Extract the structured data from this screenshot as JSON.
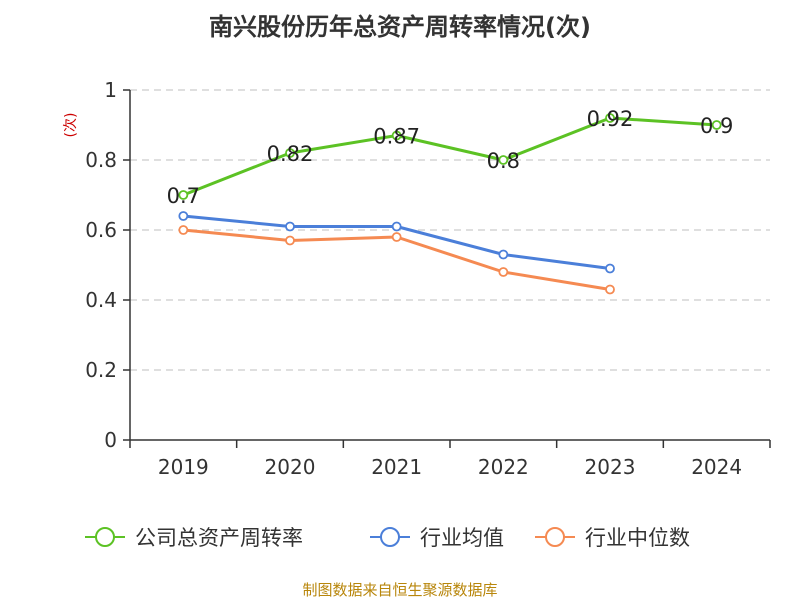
{
  "colors": {
    "series": [
      "#5cc224",
      "#4b7fd9",
      "#f58a52"
    ],
    "grid": "#cccccc",
    "axis": "#333333",
    "source": "#b8860b",
    "unit": "#cc0000"
  },
  "source_text": "制图数据来自恒生聚源数据库",
  "chart_data": {
    "type": "line",
    "title": "南兴股份历年总资产周转率情况(次)",
    "ylabel": "(次)",
    "xlabel": "",
    "categories": [
      "2019",
      "2020",
      "2021",
      "2022",
      "2023",
      "2024"
    ],
    "ylim": [
      0,
      1
    ],
    "yticks": [
      0,
      0.2,
      0.4,
      0.6,
      0.8,
      1
    ],
    "ytick_labels": [
      "0",
      "0.2",
      "0.4",
      "0.6",
      "0.8",
      "1"
    ],
    "grid": true,
    "legend_position": "bottom",
    "series": [
      {
        "name": "公司总资产周转率",
        "values": [
          0.7,
          0.82,
          0.87,
          0.8,
          0.92,
          0.9
        ],
        "data_labels": [
          "0.7",
          "0.82",
          "0.87",
          "0.8",
          "0.92",
          "0.9"
        ]
      },
      {
        "name": "行业均值",
        "values": [
          0.64,
          0.61,
          0.61,
          0.53,
          0.49,
          null
        ]
      },
      {
        "name": "行业中位数",
        "values": [
          0.6,
          0.57,
          0.58,
          0.48,
          0.43,
          null
        ]
      }
    ]
  }
}
